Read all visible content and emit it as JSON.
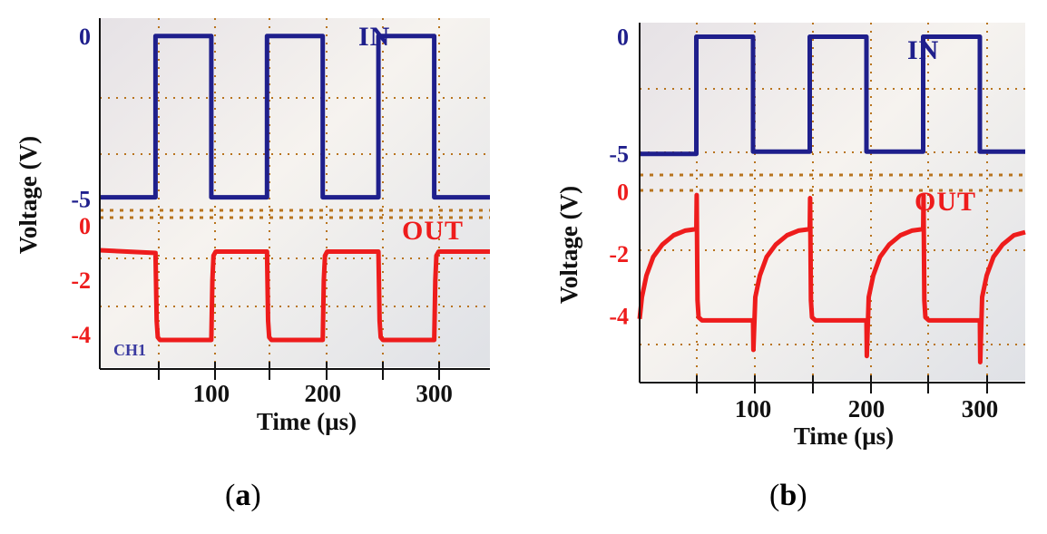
{
  "figure": {
    "panels": [
      {
        "caption_open": "(",
        "caption_letter": "a",
        "caption_close": ")",
        "badge": "CH1"
      },
      {
        "caption_open": "(",
        "caption_letter": "b",
        "caption_close": ")",
        "badge": ""
      }
    ]
  },
  "chart_data": [
    {
      "type": "line",
      "title": "",
      "xlabel": "Time (µs)",
      "ylabel": "Voltage (V)",
      "xlim": [
        0,
        350
      ],
      "x_ticks": [
        100,
        200,
        300
      ],
      "grid": true,
      "colors": {
        "in": "#1f1f8c",
        "out": "#ee1c1c",
        "grid": "#b8741e",
        "screen": "#f4f1ee",
        "screen_shade": "#d9dde4"
      },
      "series": [
        {
          "name": "IN",
          "ylim": [
            -5.35,
            0.55
          ],
          "y_ticks": [
            0,
            -5
          ],
          "x": [
            0,
            50,
            50,
            100,
            100,
            150,
            150,
            200,
            200,
            250,
            250,
            300,
            300,
            350
          ],
          "y": [
            -4.95,
            -4.95,
            0,
            0,
            -4.95,
            -4.95,
            0,
            0,
            -4.95,
            -4.95,
            0,
            0,
            -4.95,
            -4.95
          ]
        },
        {
          "name": "OUT",
          "ylim": [
            -5.2,
            0.3
          ],
          "y_ticks": [
            0,
            -2,
            -4
          ],
          "x": [
            0,
            50,
            51,
            52,
            54,
            100,
            101,
            102,
            104,
            150,
            151,
            152,
            154,
            200,
            201,
            202,
            204,
            250,
            251,
            252,
            254,
            300,
            301,
            302,
            304,
            350
          ],
          "y": [
            -0.9,
            -1.0,
            -3.5,
            -4.1,
            -4.2,
            -4.2,
            -2.0,
            -1.1,
            -0.95,
            -0.95,
            -3.5,
            -4.1,
            -4.2,
            -4.2,
            -2.0,
            -1.1,
            -0.95,
            -0.95,
            -3.5,
            -4.1,
            -4.2,
            -4.2,
            -2.0,
            -1.1,
            -0.95,
            -0.95
          ]
        }
      ]
    },
    {
      "type": "line",
      "title": "",
      "xlabel": "Time (µs)",
      "ylabel": "Voltage (V)",
      "xlim": [
        0,
        340
      ],
      "x_ticks": [
        100,
        200,
        300
      ],
      "grid": true,
      "colors": {
        "in": "#1f1f8c",
        "out": "#ee1c1c",
        "grid": "#b8741e",
        "screen": "#f4f1ee",
        "screen_shade": "#d9dde4"
      },
      "series": [
        {
          "name": "IN",
          "ylim": [
            -5.9,
            0.6
          ],
          "y_ticks": [
            0,
            -5
          ],
          "x": [
            0,
            50,
            50,
            100,
            100,
            150,
            150,
            200,
            200,
            250,
            250,
            300,
            300,
            340
          ],
          "y": [
            -5.0,
            -5.0,
            0,
            0,
            -4.9,
            -4.9,
            0,
            0,
            -4.9,
            -4.9,
            0,
            0,
            -4.9,
            -4.9
          ]
        },
        {
          "name": "OUT",
          "ylim": [
            -6.1,
            0.05
          ],
          "y_ticks": [
            0,
            -2,
            -4
          ],
          "x": [
            0,
            2,
            6,
            12,
            20,
            30,
            40,
            50,
            50.3,
            51,
            52,
            55,
            100,
            100.3,
            102,
            106,
            112,
            120,
            130,
            140,
            150,
            150.3,
            151,
            152,
            155,
            200,
            200.3,
            202,
            206,
            212,
            220,
            230,
            240,
            250,
            250.3,
            251,
            252,
            255,
            300,
            300.3,
            302,
            306,
            312,
            320,
            330,
            340
          ],
          "y": [
            -4.1,
            -3.4,
            -2.7,
            -2.1,
            -1.7,
            -1.4,
            -1.25,
            -1.2,
            -0.1,
            -3.5,
            -4.05,
            -4.15,
            -4.15,
            -5.1,
            -3.4,
            -2.7,
            -2.1,
            -1.7,
            -1.4,
            -1.25,
            -1.2,
            -0.2,
            -3.5,
            -4.05,
            -4.15,
            -4.15,
            -5.3,
            -3.4,
            -2.7,
            -2.1,
            -1.7,
            -1.4,
            -1.25,
            -1.2,
            -0.1,
            -3.5,
            -4.05,
            -4.15,
            -4.15,
            -5.5,
            -3.4,
            -2.7,
            -2.1,
            -1.7,
            -1.4,
            -1.3
          ]
        }
      ]
    }
  ]
}
